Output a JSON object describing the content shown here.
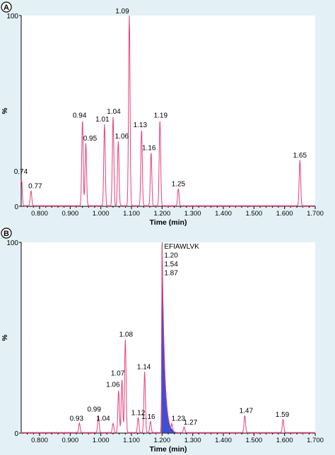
{
  "chart_data": [
    {
      "panel": "A",
      "type": "line",
      "xlabel": "Time (min)",
      "ylabel": "%",
      "xlim": [
        0.74,
        1.7
      ],
      "ylim": [
        0,
        100
      ],
      "xticks": [
        "0.800",
        "0.900",
        "1.000",
        "1.100",
        "1.200",
        "1.300",
        "1.400",
        "1.500",
        "1.600",
        "1.700"
      ],
      "yticks": [
        "0",
        "100"
      ],
      "color": "#e8407a",
      "peaks": [
        {
          "label": "0.74",
          "x": 0.741,
          "y": 14
        },
        {
          "label": "0.77",
          "x": 0.772,
          "y": 8
        },
        {
          "label": "0.94",
          "x": 0.94,
          "y": 45
        },
        {
          "label": "0.95",
          "x": 0.951,
          "y": 33
        },
        {
          "label": "1.01",
          "x": 1.012,
          "y": 43
        },
        {
          "label": "1.04",
          "x": 1.04,
          "y": 47
        },
        {
          "label": "1.06",
          "x": 1.057,
          "y": 34
        },
        {
          "label": "1.09",
          "x": 1.093,
          "y": 100
        },
        {
          "label": "1.13",
          "x": 1.133,
          "y": 40
        },
        {
          "label": "1.16",
          "x": 1.164,
          "y": 28
        },
        {
          "label": "1.19",
          "x": 1.193,
          "y": 45
        },
        {
          "label": "1.25",
          "x": 1.253,
          "y": 9
        },
        {
          "label": "1.65",
          "x": 1.65,
          "y": 24
        }
      ]
    },
    {
      "panel": "B",
      "type": "line",
      "xlabel": "Time (min)",
      "ylabel": "%",
      "xlim": [
        0.74,
        1.7
      ],
      "ylim": [
        0,
        100
      ],
      "xticks": [
        "0.800",
        "0.900",
        "1.000",
        "1.100",
        "1.200",
        "1.300",
        "1.400",
        "1.500",
        "1.600",
        "1.700"
      ],
      "yticks": [
        "0",
        "100"
      ],
      "color": "#e8407a",
      "highlight_color": "#3d4fd6",
      "highlight_peak": {
        "x": 1.2,
        "y": 100,
        "labels": [
          "EFIAWLVK",
          "1.20",
          "1.54",
          "1.87"
        ]
      },
      "peaks": [
        {
          "label": "0.93",
          "x": 0.93,
          "y": 5
        },
        {
          "label": "0.99",
          "x": 0.992,
          "y": 9
        },
        {
          "label": "1.04",
          "x": 1.04,
          "y": 5
        },
        {
          "label": "1.06",
          "x": 1.058,
          "y": 22
        },
        {
          "label": "1.07",
          "x": 1.069,
          "y": 28
        },
        {
          "label": "1.08",
          "x": 1.08,
          "y": 49
        },
        {
          "label": "1.12",
          "x": 1.122,
          "y": 8
        },
        {
          "label": "1.14",
          "x": 1.143,
          "y": 32
        },
        {
          "label": "1.16",
          "x": 1.162,
          "y": 6
        },
        {
          "label": "1.23",
          "x": 1.232,
          "y": 5
        },
        {
          "label": "1.27",
          "x": 1.272,
          "y": 3
        },
        {
          "label": "1.47",
          "x": 1.47,
          "y": 9
        },
        {
          "label": "1.59",
          "x": 1.595,
          "y": 7
        }
      ]
    }
  ]
}
